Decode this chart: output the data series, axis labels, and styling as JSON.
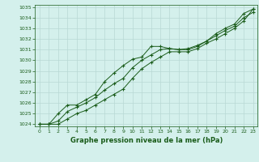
{
  "title": "Graphe pression niveau de la mer (hPa)",
  "background_color": "#d4f0ec",
  "grid_color": "#b8d8d4",
  "line_color": "#1a5c1a",
  "xlim": [
    -0.5,
    23.5
  ],
  "ylim": [
    1023.8,
    1035.2
  ],
  "xticks": [
    0,
    1,
    2,
    3,
    4,
    5,
    6,
    7,
    8,
    9,
    10,
    11,
    12,
    13,
    14,
    15,
    16,
    17,
    18,
    19,
    20,
    21,
    22,
    23
  ],
  "yticks": [
    1024,
    1025,
    1026,
    1027,
    1028,
    1029,
    1030,
    1031,
    1032,
    1033,
    1034,
    1035
  ],
  "series1": [
    1024.0,
    1024.0,
    1025.0,
    1025.8,
    1025.8,
    1026.3,
    1026.8,
    1028.0,
    1028.8,
    1029.5,
    1030.1,
    1030.3,
    1031.3,
    1031.3,
    1031.1,
    1031.0,
    1031.1,
    1031.4,
    1031.8,
    1032.5,
    1033.0,
    1033.4,
    1034.4,
    1034.8
  ],
  "series2": [
    1024.0,
    1024.0,
    1024.3,
    1025.2,
    1025.6,
    1026.0,
    1026.5,
    1027.2,
    1027.8,
    1028.3,
    1029.3,
    1030.0,
    1030.5,
    1031.0,
    1031.1,
    1031.0,
    1031.0,
    1031.3,
    1031.8,
    1032.3,
    1032.8,
    1033.2,
    1034.0,
    1034.5
  ],
  "series3": [
    1024.0,
    1024.0,
    1024.0,
    1024.5,
    1025.0,
    1025.3,
    1025.8,
    1026.3,
    1026.8,
    1027.3,
    1028.3,
    1029.2,
    1029.8,
    1030.3,
    1030.8,
    1030.8,
    1030.8,
    1031.1,
    1031.6,
    1032.0,
    1032.5,
    1033.0,
    1033.7,
    1034.8
  ]
}
